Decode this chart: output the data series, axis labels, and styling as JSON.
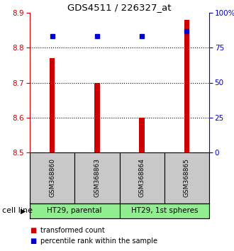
{
  "title": "GDS4511 / 226327_at",
  "samples": [
    "GSM368860",
    "GSM368863",
    "GSM368864",
    "GSM368865"
  ],
  "bar_values": [
    8.77,
    8.7,
    8.6,
    8.88
  ],
  "bar_bottom": 8.5,
  "percentile_values": [
    83,
    83,
    83,
    87
  ],
  "ylim": [
    8.5,
    8.9
  ],
  "y2lim": [
    0,
    100
  ],
  "yticks": [
    8.5,
    8.6,
    8.7,
    8.8,
    8.9
  ],
  "y2ticks": [
    0,
    25,
    50,
    75,
    100
  ],
  "y2ticklabels": [
    "0",
    "25",
    "50",
    "75",
    "100%"
  ],
  "bar_color": "#cc0000",
  "percentile_color": "#0000cc",
  "cell_lines": [
    "HT29, parental",
    "HT29, 1st spheres"
  ],
  "cell_line_color": "#90ee90",
  "sample_box_color": "#c8c8c8",
  "legend_red_label": "transformed count",
  "legend_blue_label": "percentile rank within the sample",
  "cell_line_label": "cell line",
  "background_color": "#ffffff",
  "grid_ticks": [
    8.6,
    8.7,
    8.8
  ]
}
